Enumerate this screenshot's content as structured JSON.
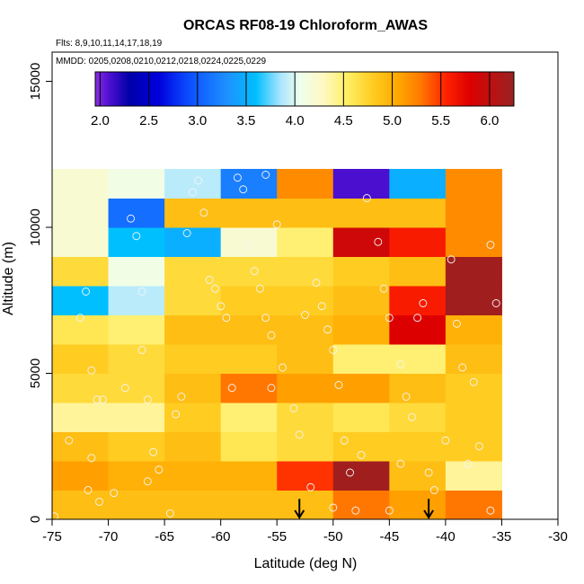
{
  "chart_data": {
    "type": "heatmap",
    "title": "ORCAS RF08-19 Chloroform_AWAS",
    "flights_note": "Flts: 8,9,10,11,14,17,18,19",
    "dates_note": "MMDD: 0205,0208,0210,0212,0218,0224,0225,0229",
    "xlabel": "Latitude (deg N)",
    "ylabel": "Altitude (m)",
    "xlim": [
      -75,
      -30
    ],
    "ylim": [
      0,
      16000
    ],
    "x_ticks": [
      "-75",
      "-70",
      "-65",
      "-60",
      "-55",
      "-50",
      "-45",
      "-40",
      "-35",
      "-30"
    ],
    "x_tick_values": [
      -75,
      -70,
      -65,
      -60,
      -55,
      -50,
      -45,
      -40,
      -35,
      -30
    ],
    "y_ticks": [
      "0",
      "5000",
      "10000",
      "15000"
    ],
    "y_tick_values": [
      0,
      5000,
      10000,
      15000
    ],
    "colorbar": {
      "min": 1.95,
      "max": 6.25,
      "ticks": [
        "2.0",
        "2.5",
        "3.0",
        "3.5",
        "4.0",
        "4.5",
        "5.0",
        "5.5",
        "6.0"
      ],
      "tick_values": [
        2.0,
        2.5,
        3.0,
        3.5,
        4.0,
        4.5,
        5.0,
        5.5,
        6.0
      ],
      "stops": [
        [
          1.95,
          "#8a2be2"
        ],
        [
          2.1,
          "#4b0fd0"
        ],
        [
          2.3,
          "#0000a8"
        ],
        [
          2.6,
          "#0000dd"
        ],
        [
          2.9,
          "#0a4cff"
        ],
        [
          3.3,
          "#1e90ff"
        ],
        [
          3.6,
          "#00bfff"
        ],
        [
          3.85,
          "#a8e4ff"
        ],
        [
          4.05,
          "#eeffee"
        ],
        [
          4.3,
          "#fff8c0"
        ],
        [
          4.55,
          "#ffee60"
        ],
        [
          4.8,
          "#ffcc22"
        ],
        [
          5.05,
          "#ffaa00"
        ],
        [
          5.3,
          "#ff7700"
        ],
        [
          5.55,
          "#ff2200"
        ],
        [
          5.8,
          "#dd0000"
        ],
        [
          6.25,
          "#992222"
        ]
      ]
    },
    "lat_bins": [
      -75,
      -70,
      -65,
      -60,
      -55,
      -50,
      -45,
      -40,
      -35
    ],
    "alt_bins": [
      0,
      1000,
      2000,
      3000,
      4000,
      5000,
      6000,
      7000,
      8000,
      9000,
      10000,
      11000,
      12000
    ],
    "grid_values": [
      [
        4.9,
        4.9,
        4.9,
        4.9,
        4.9,
        5.3,
        5.1,
        5.3
      ],
      [
        5.1,
        5.0,
        5.0,
        5.0,
        5.5,
        6.2,
        4.9,
        4.4
      ],
      [
        4.9,
        4.8,
        4.9,
        4.6,
        4.7,
        4.8,
        4.8,
        4.8
      ],
      [
        4.4,
        4.4,
        4.8,
        4.5,
        4.7,
        4.6,
        4.7,
        4.8
      ],
      [
        4.7,
        4.7,
        4.9,
        5.3,
        5.1,
        5.1,
        4.9,
        4.8
      ],
      [
        4.8,
        4.7,
        4.8,
        4.8,
        4.9,
        4.5,
        4.5,
        4.9
      ],
      [
        4.6,
        4.5,
        4.9,
        4.9,
        4.9,
        5.0,
        5.8,
        5.0
      ],
      [
        3.6,
        3.9,
        4.7,
        4.8,
        4.8,
        4.9,
        5.6,
        6.2
      ],
      [
        4.7,
        4.1,
        4.7,
        4.7,
        4.7,
        4.8,
        4.9,
        6.2
      ],
      [
        4.2,
        3.6,
        3.5,
        4.2,
        4.5,
        5.9,
        5.6,
        5.2
      ],
      [
        4.2,
        3.1,
        4.9,
        4.9,
        4.9,
        4.9,
        4.9,
        5.2
      ],
      [
        4.2,
        4.1,
        3.9,
        3.2,
        5.2,
        2.1,
        3.5,
        5.2
      ]
    ],
    "sample_points": [
      [
        -74.8,
        100
      ],
      [
        -73.5,
        2700
      ],
      [
        -72.5,
        6900
      ],
      [
        -72.0,
        7800
      ],
      [
        -71.8,
        1000
      ],
      [
        -71.5,
        5100
      ],
      [
        -71.0,
        4100
      ],
      [
        -70.5,
        4100
      ],
      [
        -70.8,
        600
      ],
      [
        -71.5,
        2100
      ],
      [
        -69.5,
        900
      ],
      [
        -68.5,
        4500
      ],
      [
        -68.0,
        10300
      ],
      [
        -67.5,
        9700
      ],
      [
        -67.0,
        7800
      ],
      [
        -66.5,
        1300
      ],
      [
        -67.0,
        5800
      ],
      [
        -66.5,
        4100
      ],
      [
        -66.0,
        2300
      ],
      [
        -65.5,
        1700
      ],
      [
        -64.5,
        200
      ],
      [
        -64.0,
        3600
      ],
      [
        -63.5,
        4200
      ],
      [
        -63.0,
        9800
      ],
      [
        -62.5,
        11200
      ],
      [
        -62.0,
        11600
      ],
      [
        -61.5,
        10500
      ],
      [
        -61.0,
        8200
      ],
      [
        -60.5,
        7900
      ],
      [
        -60.0,
        7300
      ],
      [
        -59.5,
        6900
      ],
      [
        -59.0,
        4500
      ],
      [
        -58.5,
        11700
      ],
      [
        -58.0,
        11300
      ],
      [
        -57.5,
        9400
      ],
      [
        -57.0,
        8500
      ],
      [
        -56.5,
        7900
      ],
      [
        -56.0,
        6900
      ],
      [
        -55.5,
        6300
      ],
      [
        -55.0,
        10100
      ],
      [
        -56.0,
        11800
      ],
      [
        -55.5,
        4500
      ],
      [
        -54.5,
        5200
      ],
      [
        -53.5,
        3800
      ],
      [
        -53.0,
        2900
      ],
      [
        -52.5,
        7000
      ],
      [
        -51.5,
        8100
      ],
      [
        -51.0,
        7300
      ],
      [
        -50.5,
        6500
      ],
      [
        -50.0,
        5800
      ],
      [
        -49.5,
        4600
      ],
      [
        -49.0,
        2700
      ],
      [
        -48.5,
        1600
      ],
      [
        -48.0,
        300
      ],
      [
        -47.0,
        11000
      ],
      [
        -46.0,
        9500
      ],
      [
        -45.5,
        7900
      ],
      [
        -45.0,
        6900
      ],
      [
        -44.0,
        5300
      ],
      [
        -43.5,
        4200
      ],
      [
        -43.0,
        3500
      ],
      [
        -42.5,
        6900
      ],
      [
        -42.0,
        7400
      ],
      [
        -41.5,
        1600
      ],
      [
        -41.0,
        1000
      ],
      [
        -40.0,
        2700
      ],
      [
        -39.5,
        8900
      ],
      [
        -39.0,
        6700
      ],
      [
        -38.5,
        5200
      ],
      [
        -37.5,
        4700
      ],
      [
        -37.0,
        2500
      ],
      [
        -36.0,
        9400
      ],
      [
        -35.5,
        7400
      ],
      [
        -36.0,
        300
      ],
      [
        -38.0,
        1900
      ],
      [
        -45.0,
        300
      ],
      [
        -44.0,
        1900
      ],
      [
        -47.5,
        2200
      ],
      [
        -50.0,
        400
      ],
      [
        -52.0,
        1100
      ]
    ],
    "markers": [
      {
        "lat": -53.0,
        "label_hint": "down arrow"
      },
      {
        "lat": -41.5,
        "label_hint": "down arrow"
      }
    ]
  }
}
